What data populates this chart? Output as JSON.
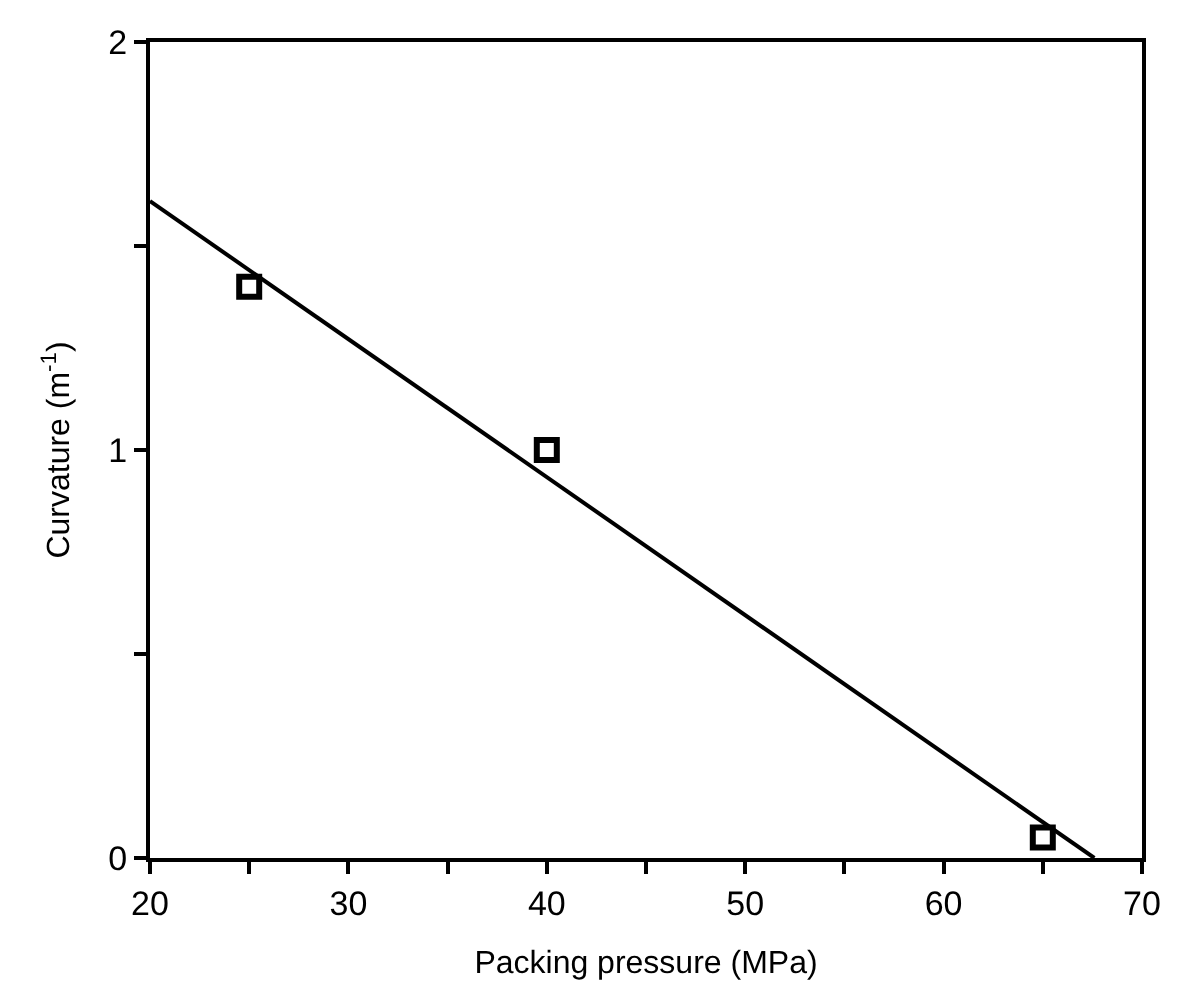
{
  "chart_data": {
    "type": "scatter",
    "xlabel": "Packing pressure (MPa)",
    "ylabel": "Curvature (m$^{-1}$)",
    "x": [
      25,
      40,
      65
    ],
    "series": [
      {
        "color": "#000000",
        "values": [
          1.4,
          1.0,
          0.05
        ],
        "marker": "square"
      },
      {
        "type": "line",
        "color": "#000000",
        "x": [
          20,
          67.6
        ],
        "values": [
          1.61,
          0
        ],
        "line_style": "solid"
      }
    ],
    "xlim": [
      20,
      70
    ],
    "ylim": [
      0,
      2
    ],
    "xticks": [
      20,
      {
        "value": 25,
        "label": null
      },
      30,
      {
        "value": 35,
        "label": null
      },
      40,
      {
        "value": 45,
        "label": null
      },
      50,
      {
        "value": 55,
        "label": null
      },
      60,
      {
        "value": 65,
        "label": null
      },
      70
    ],
    "yticks": [
      0,
      {
        "value": 0.5,
        "label": null
      },
      1,
      {
        "value": 1.5,
        "label": null
      },
      2
    ]
  }
}
